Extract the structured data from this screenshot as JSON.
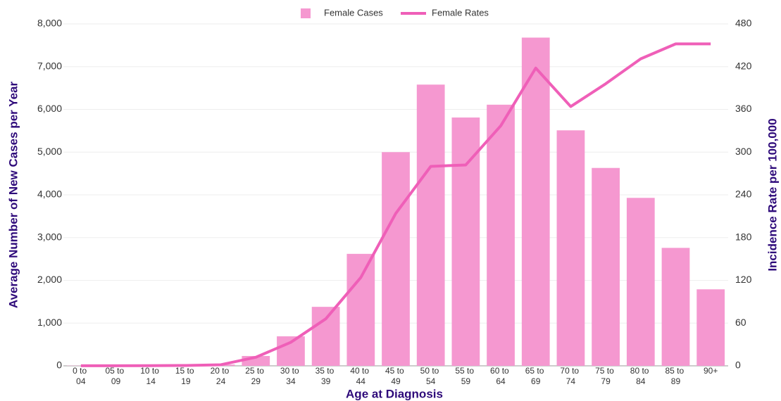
{
  "chart_data": {
    "type": "bar_line",
    "x_label": "Age at Diagnosis",
    "y_label": "Average Number of New Cases per Year",
    "y2_label": "Incidence Rate per 100,000",
    "categories": [
      "0 to 04",
      "05 to 09",
      "10 to 14",
      "15 to 19",
      "20 to 24",
      "25 to 29",
      "30 to 34",
      "35 to 39",
      "40 to 44",
      "45 to 49",
      "50 to 54",
      "55 to 59",
      "60 to 64",
      "65 to 69",
      "70 to 74",
      "75 to 79",
      "80 to 84",
      "85 to 89",
      "90+"
    ],
    "series": [
      {
        "name": "Female Cases",
        "type": "bar",
        "color": "#f598d0",
        "values": [
          5,
          2,
          2,
          5,
          30,
          230,
          690,
          1380,
          2620,
          5000,
          6580,
          5810,
          6110,
          7680,
          5510,
          4630,
          3930,
          2760,
          1790
        ]
      },
      {
        "name": "Female Rates",
        "type": "line",
        "axis": "y2",
        "color": "#ef5fb8",
        "values": [
          0.1,
          0.1,
          0.2,
          0.5,
          1.5,
          12,
          33,
          66,
          124,
          214,
          280,
          282,
          337,
          418,
          364,
          396,
          431,
          452,
          452
        ]
      }
    ],
    "ylim": [
      0,
      8000
    ],
    "yticks": [
      0,
      {
        "value": 1000,
        "label": "1,000"
      },
      {
        "value": 2000,
        "label": "2,000"
      },
      {
        "value": 3000,
        "label": "3,000"
      },
      {
        "value": 4000,
        "label": "4,000"
      },
      {
        "value": 5000,
        "label": "5,000"
      },
      {
        "value": 6000,
        "label": "6,000"
      },
      {
        "value": 7000,
        "label": "7,000"
      },
      {
        "value": 8000,
        "label": "8,000"
      }
    ],
    "y2lim": [
      0,
      480
    ],
    "y2ticks": [
      0,
      60,
      120,
      180,
      240,
      300,
      360,
      420,
      480
    ],
    "grid": true,
    "legend": "top"
  }
}
